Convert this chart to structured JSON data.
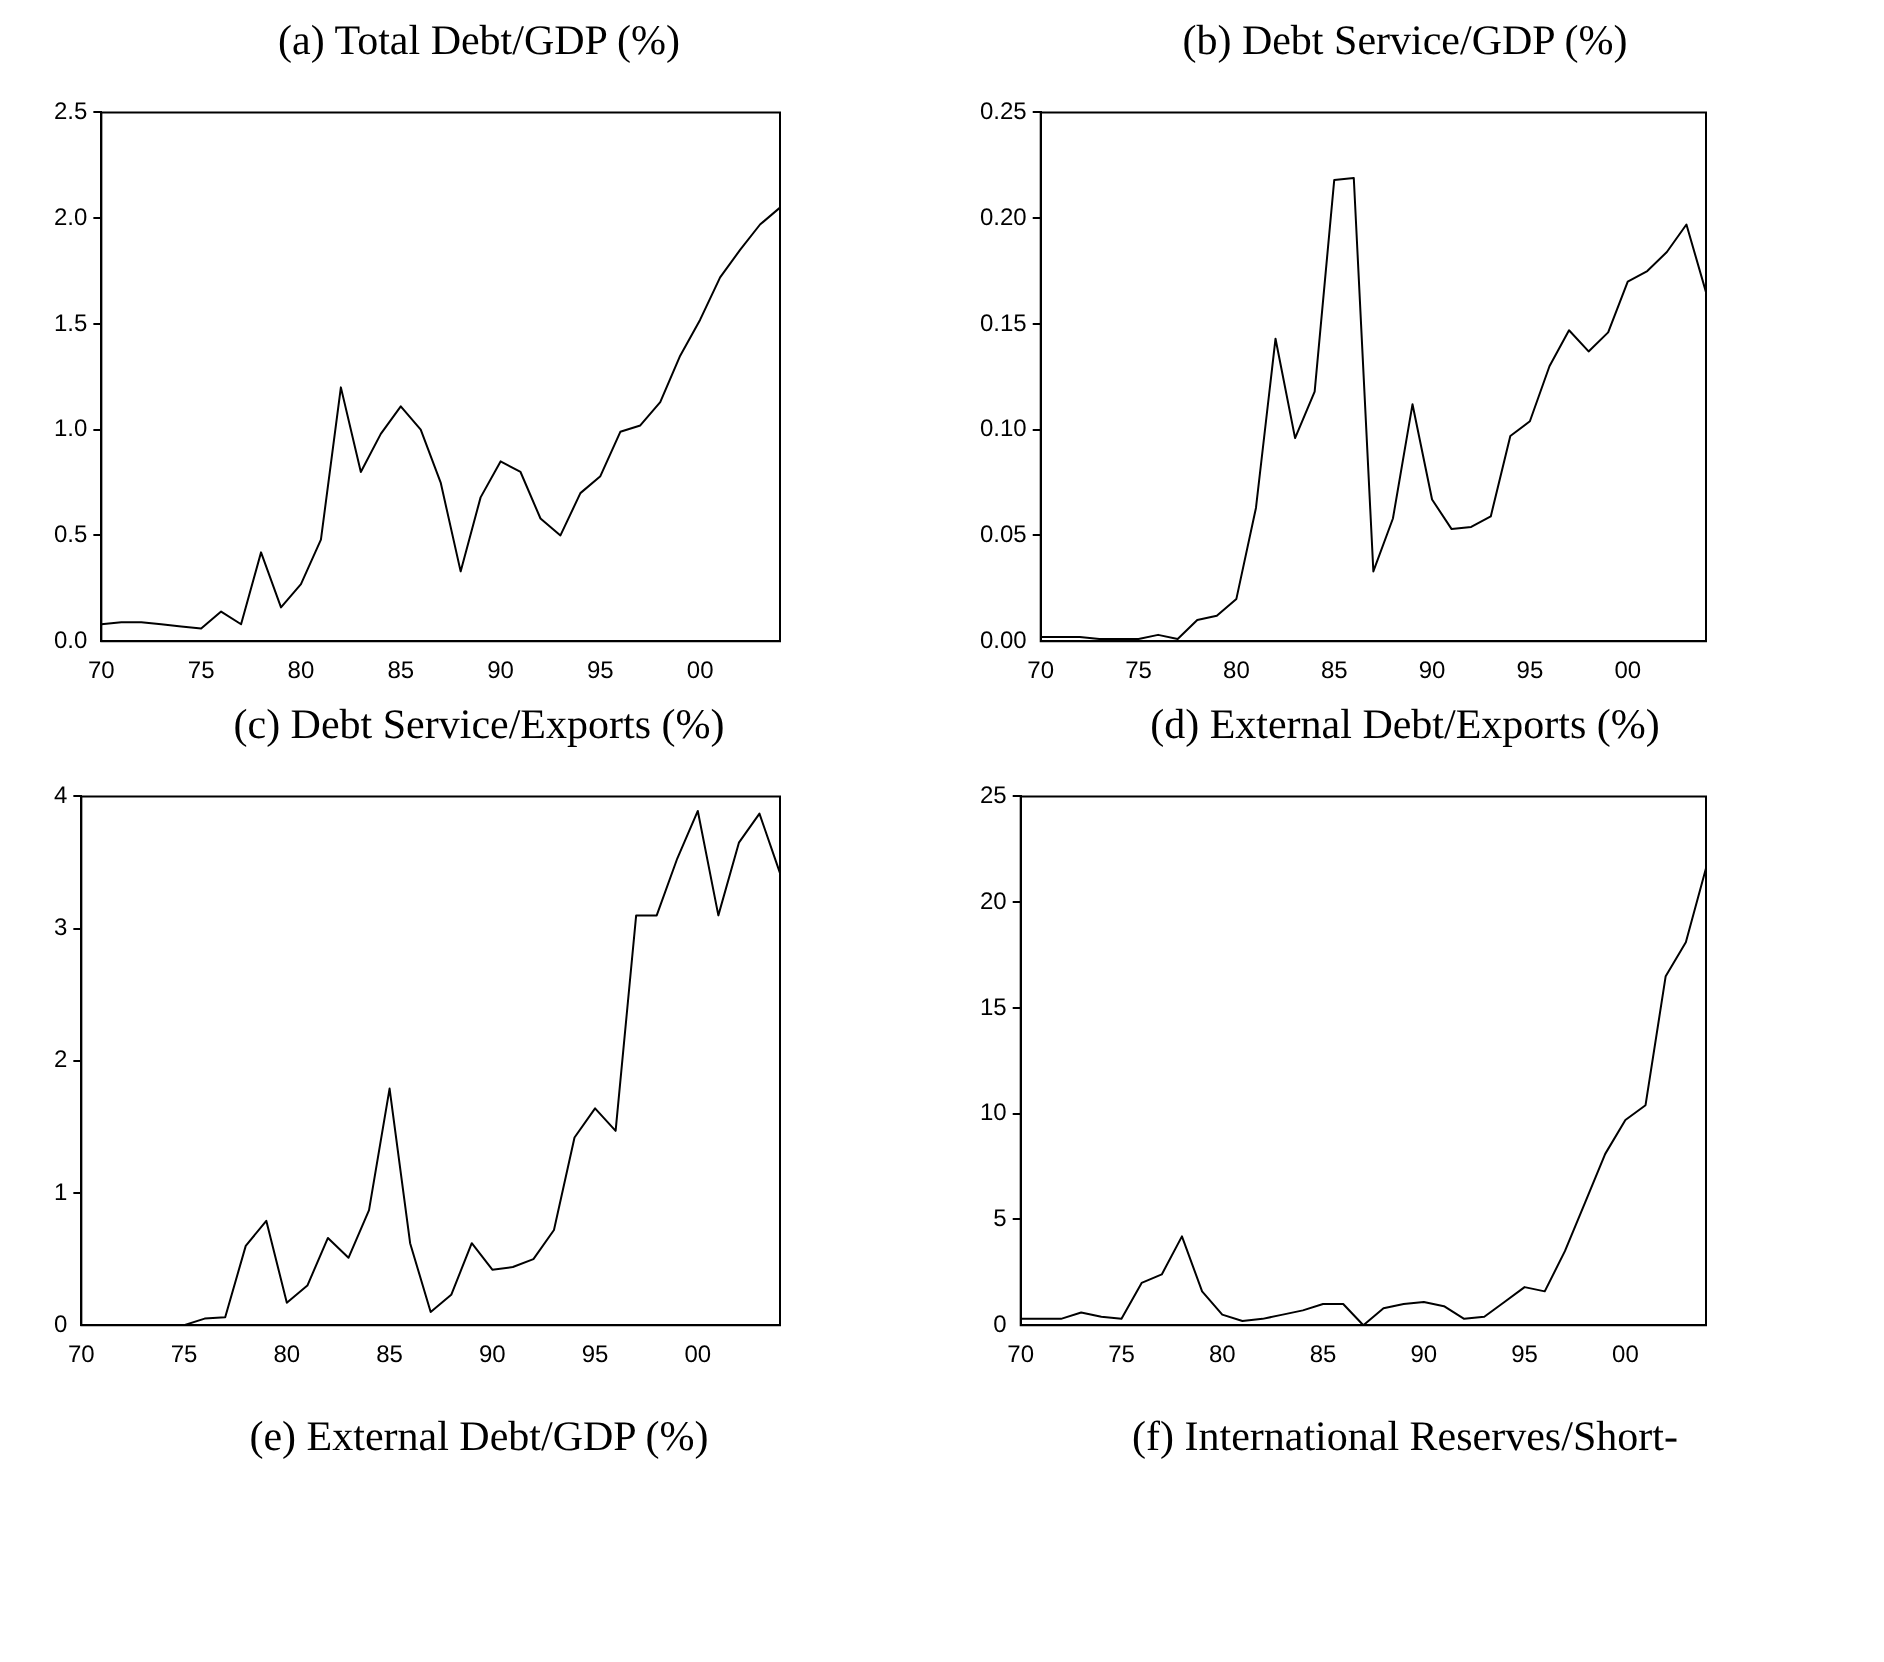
{
  "chart_data": [
    {
      "type": "line",
      "title": "(a) Total Debt/GDP (%)",
      "x": [
        1970,
        1971,
        1972,
        1973,
        1974,
        1975,
        1976,
        1977,
        1978,
        1979,
        1980,
        1981,
        1982,
        1983,
        1984,
        1985,
        1986,
        1987,
        1988,
        1989,
        1990,
        1991,
        1992,
        1993,
        1994,
        1995,
        1996,
        1997,
        1998,
        1999,
        2000,
        2001,
        2002,
        2003,
        2004
      ],
      "values": [
        0.08,
        0.09,
        0.09,
        0.08,
        0.07,
        0.06,
        0.14,
        0.08,
        0.42,
        0.16,
        0.27,
        0.48,
        1.2,
        0.8,
        0.98,
        1.11,
        1.0,
        0.75,
        0.33,
        0.68,
        0.85,
        0.8,
        0.58,
        0.5,
        0.7,
        0.78,
        0.99,
        1.02,
        1.13,
        1.35,
        1.52,
        1.72,
        1.85,
        1.97,
        2.05
      ],
      "color": "#000000",
      "marker": "none",
      "xlim": [
        1970,
        2004
      ],
      "xticks": [
        {
          "value": 1970,
          "label": "70"
        },
        {
          "value": 1975,
          "label": "75"
        },
        {
          "value": 1980,
          "label": "80"
        },
        {
          "value": 1985,
          "label": "85"
        },
        {
          "value": 1990,
          "label": "90"
        },
        {
          "value": 1995,
          "label": "95"
        },
        {
          "value": 2000,
          "label": "00"
        }
      ],
      "ylim": [
        0,
        2.5
      ],
      "yticks": [
        {
          "value": 0,
          "label": "0.0"
        },
        {
          "value": 0.5,
          "label": "0.5"
        },
        {
          "value": 1,
          "label": "1.0"
        },
        {
          "value": 1.5,
          "label": "1.5"
        },
        {
          "value": 2,
          "label": "2.0"
        },
        {
          "value": 2.5,
          "label": "2.5"
        }
      ]
    },
    {
      "type": "line",
      "title": "(b) Debt Service/GDP (%)",
      "x": [
        1970,
        1971,
        1972,
        1973,
        1974,
        1975,
        1976,
        1977,
        1978,
        1979,
        1980,
        1981,
        1982,
        1983,
        1984,
        1985,
        1986,
        1987,
        1988,
        1989,
        1990,
        1991,
        1992,
        1993,
        1994,
        1995,
        1996,
        1997,
        1998,
        1999,
        2000,
        2001,
        2002,
        2003,
        2004
      ],
      "values": [
        0.002,
        0.002,
        0.002,
        0.001,
        0.001,
        0.001,
        0.003,
        0.001,
        0.01,
        0.012,
        0.02,
        0.063,
        0.143,
        0.096,
        0.118,
        0.218,
        0.219,
        0.033,
        0.058,
        0.112,
        0.067,
        0.053,
        0.054,
        0.059,
        0.097,
        0.104,
        0.13,
        0.147,
        0.137,
        0.146,
        0.17,
        0.175,
        0.184,
        0.197,
        0.165
      ],
      "color": "#000000",
      "marker": "none",
      "xlim": [
        1970,
        2004
      ],
      "xticks": [
        {
          "value": 1970,
          "label": "70"
        },
        {
          "value": 1975,
          "label": "75"
        },
        {
          "value": 1980,
          "label": "80"
        },
        {
          "value": 1985,
          "label": "85"
        },
        {
          "value": 1990,
          "label": "90"
        },
        {
          "value": 1995,
          "label": "95"
        },
        {
          "value": 2000,
          "label": "00"
        }
      ],
      "ylim": [
        0,
        0.25
      ],
      "yticks": [
        {
          "value": 0,
          "label": "0.00"
        },
        {
          "value": 0.05,
          "label": "0.05"
        },
        {
          "value": 0.1,
          "label": "0.10"
        },
        {
          "value": 0.15,
          "label": "0.15"
        },
        {
          "value": 0.2,
          "label": "0.20"
        },
        {
          "value": 0.25,
          "label": "0.25"
        }
      ]
    },
    {
      "type": "line",
      "title": "(c) Debt Service/Exports (%)",
      "annotations": [
        "(e) External Debt/GDP (%)"
      ],
      "x": [
        1970,
        1971,
        1972,
        1973,
        1974,
        1975,
        1976,
        1977,
        1978,
        1979,
        1980,
        1981,
        1982,
        1983,
        1984,
        1985,
        1986,
        1987,
        1988,
        1989,
        1990,
        1991,
        1992,
        1993,
        1994,
        1995,
        1996,
        1997,
        1998,
        1999,
        2000,
        2001,
        2002,
        2003,
        2004
      ],
      "values": [
        0,
        0,
        0,
        0,
        0,
        0,
        0.05,
        0.06,
        0.6,
        0.79,
        0.17,
        0.3,
        0.66,
        0.51,
        0.87,
        1.79,
        0.62,
        0.1,
        0.23,
        0.62,
        0.42,
        0.44,
        0.5,
        0.72,
        1.42,
        1.64,
        1.47,
        3.1,
        3.1,
        3.53,
        3.89,
        3.1,
        3.65,
        3.87,
        3.42
      ],
      "color": "#000000",
      "marker": "none",
      "xlim": [
        1970,
        2004
      ],
      "xticks": [
        {
          "value": 1970,
          "label": "70"
        },
        {
          "value": 1975,
          "label": "75"
        },
        {
          "value": 1980,
          "label": "80"
        },
        {
          "value": 1985,
          "label": "85"
        },
        {
          "value": 1990,
          "label": "90"
        },
        {
          "value": 1995,
          "label": "95"
        },
        {
          "value": 2000,
          "label": "00"
        }
      ],
      "ylim": [
        0,
        4
      ],
      "yticks": [
        0,
        1,
        2,
        3,
        4
      ]
    },
    {
      "type": "line",
      "title": "(d) External Debt/Exports (%)",
      "annotations": [
        "(f) International Reserves/Short-"
      ],
      "x": [
        1970,
        1971,
        1972,
        1973,
        1974,
        1975,
        1976,
        1977,
        1978,
        1979,
        1980,
        1981,
        1982,
        1983,
        1984,
        1985,
        1986,
        1987,
        1988,
        1989,
        1990,
        1991,
        1992,
        1993,
        1994,
        1995,
        1996,
        1997,
        1998,
        1999,
        2000,
        2001,
        2002,
        2003,
        2004
      ],
      "values": [
        0.3,
        0.3,
        0.3,
        0.6,
        0.4,
        0.3,
        2.0,
        2.4,
        4.2,
        1.6,
        0.5,
        0.2,
        0.3,
        0.5,
        0.7,
        1.0,
        1.0,
        0.0,
        0.8,
        1.0,
        1.1,
        0.9,
        0.3,
        0.4,
        1.1,
        1.8,
        1.6,
        3.5,
        5.8,
        8.1,
        9.7,
        10.4,
        16.5,
        18.1,
        21.6
      ],
      "color": "#000000",
      "marker": "none",
      "xlim": [
        1970,
        2004
      ],
      "xticks": [
        {
          "value": 1970,
          "label": "70"
        },
        {
          "value": 1975,
          "label": "75"
        },
        {
          "value": 1980,
          "label": "80"
        },
        {
          "value": 1985,
          "label": "85"
        },
        {
          "value": 1990,
          "label": "90"
        },
        {
          "value": 1995,
          "label": "95"
        },
        {
          "value": 2000,
          "label": "00"
        }
      ],
      "ylim": [
        0,
        25
      ],
      "yticks": [
        0,
        5,
        10,
        15,
        20,
        25
      ]
    }
  ]
}
